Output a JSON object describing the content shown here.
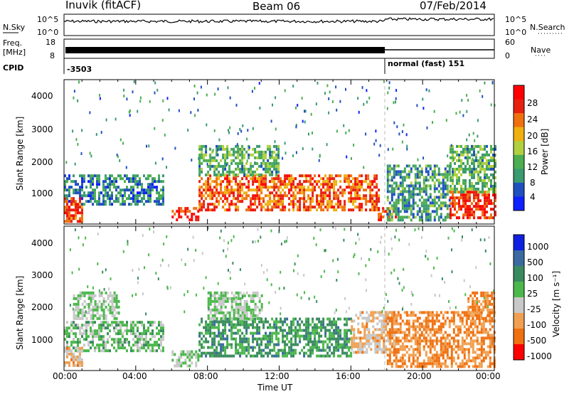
{
  "header": {
    "station": "Inuvik (fitACF)",
    "beam": "Beam 06",
    "date": "07/Feb/2014"
  },
  "noise_panel": {
    "left_label": "N.Sky",
    "left_ticks": [
      "10^5",
      "10^0"
    ],
    "right_label": "N.Search",
    "right_ticks": [
      "10^5",
      "10^0"
    ]
  },
  "freq_panel": {
    "left_label_1": "Freq.",
    "left_label_2": "[MHz]",
    "left_ticks": [
      "18",
      "8"
    ],
    "right_label": "Nave",
    "right_ticks": [
      "60",
      "0"
    ]
  },
  "cpid_panel": {
    "label": "CPID",
    "segments": [
      {
        "text": "-3503",
        "start": "00:00"
      },
      {
        "text": "normal (fast) 151",
        "start": "18:00"
      }
    ]
  },
  "x_axis": {
    "ticks": [
      "00:00",
      "04:00",
      "08:00",
      "12:00",
      "16:00",
      "20:00",
      "00:00"
    ],
    "label": "Time UT"
  },
  "power_panel": {
    "ylabel": "Slant Range [km]",
    "yticks": [
      "4000",
      "3000",
      "2000",
      "1000"
    ],
    "colorbar_label": "Power [dB]",
    "colorbar_ticks": [
      "28",
      "24",
      "20",
      "16",
      "12",
      "8",
      "4"
    ]
  },
  "velocity_panel": {
    "ylabel": "Slant Range [km]",
    "yticks": [
      "4000",
      "3000",
      "2000",
      "1000"
    ],
    "colorbar_label": "Velocity [m s⁻¹]",
    "colorbar_ticks": [
      "1000",
      "500",
      "100",
      "25",
      "-25",
      "-100",
      "-500",
      "-1000"
    ]
  },
  "chart_data": [
    {
      "type": "heatmap",
      "title": "Inuvik (fitACF) Beam 06 07/Feb/2014",
      "xlabel": "Time UT",
      "ylabel": "Slant Range [km]",
      "quantity": "Power [dB]",
      "xlim": [
        "00:00",
        "24:00"
      ],
      "ylim": [
        180,
        4600
      ],
      "zlim": [
        0,
        32
      ],
      "colorscale": [
        "#1020ff",
        "#2050c0",
        "#3a9a70",
        "#4cae50",
        "#b0d040",
        "#f0b010",
        "#f07010",
        "#e82010",
        "#ff0000"
      ],
      "regions": [
        {
          "t_start": 0.0,
          "t_end": 5.5,
          "range_min": 800,
          "range_max": 1700,
          "power_db": 8
        },
        {
          "t_start": 0.0,
          "t_end": 1.0,
          "range_min": 300,
          "range_max": 1000,
          "power_db": 26
        },
        {
          "t_start": 6.0,
          "t_end": 7.5,
          "range_min": 300,
          "range_max": 700,
          "power_db": 28
        },
        {
          "t_start": 7.5,
          "t_end": 17.5,
          "range_min": 600,
          "range_max": 1700,
          "power_db": 24
        },
        {
          "t_start": 7.5,
          "t_end": 12.0,
          "range_min": 1700,
          "range_max": 2600,
          "power_db": 12
        },
        {
          "t_start": 17.5,
          "t_end": 18.5,
          "range_min": 300,
          "range_max": 700,
          "power_db": 26
        },
        {
          "t_start": 18.0,
          "t_end": 21.5,
          "range_min": 300,
          "range_max": 2000,
          "power_db": 10
        },
        {
          "t_start": 21.5,
          "t_end": 24.0,
          "range_min": 400,
          "range_max": 1200,
          "power_db": 27
        },
        {
          "t_start": 21.5,
          "t_end": 24.0,
          "range_min": 1200,
          "range_max": 2600,
          "power_db": 12
        }
      ]
    },
    {
      "type": "heatmap",
      "xlabel": "Time UT",
      "ylabel": "Slant Range [km]",
      "quantity": "Velocity [m s⁻¹]",
      "xlim": [
        "00:00",
        "24:00"
      ],
      "ylim": [
        180,
        4600
      ],
      "zlim": [
        -1000,
        1000
      ],
      "colorscale": [
        "#ff0000",
        "#f07010",
        "#f0a050",
        "#c8c8c8",
        "#4cb84c",
        "#3a8a60",
        "#3a6aa0",
        "#1020e0"
      ],
      "regions": [
        {
          "t_start": 0.0,
          "t_end": 5.5,
          "range_min": 800,
          "range_max": 1700,
          "velocity": 100
        },
        {
          "t_start": 0.5,
          "t_end": 3.0,
          "range_min": 1800,
          "range_max": 2600,
          "velocity": 0
        },
        {
          "t_start": 0.0,
          "t_end": 1.0,
          "range_min": 300,
          "range_max": 900,
          "velocity": -300
        },
        {
          "t_start": 6.0,
          "t_end": 7.5,
          "range_min": 300,
          "range_max": 800,
          "velocity": 0
        },
        {
          "t_start": 7.5,
          "t_end": 16.0,
          "range_min": 600,
          "range_max": 1800,
          "velocity": 300
        },
        {
          "t_start": 8.0,
          "t_end": 11.0,
          "range_min": 1800,
          "range_max": 2600,
          "velocity": 0
        },
        {
          "t_start": 16.0,
          "t_end": 18.5,
          "range_min": 700,
          "range_max": 2000,
          "velocity": -300
        },
        {
          "t_start": 18.0,
          "t_end": 24.0,
          "range_min": 300,
          "range_max": 2000,
          "velocity": -500
        },
        {
          "t_start": 22.5,
          "t_end": 24.0,
          "range_min": 1800,
          "range_max": 2600,
          "velocity": -500
        }
      ]
    }
  ]
}
